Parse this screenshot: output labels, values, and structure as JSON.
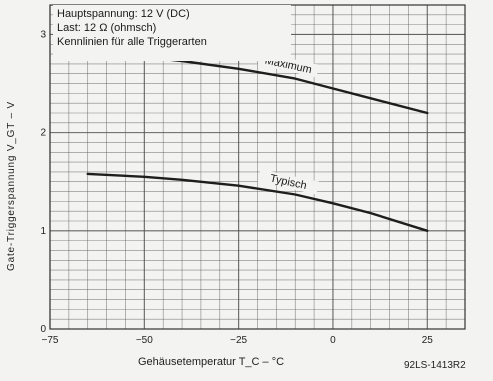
{
  "chart_data": {
    "type": "line",
    "annotation_lines": [
      "Hauptspannung: 12 V (DC)",
      "Last: 12 Ω (ohmsch)",
      "Kennlinien für alle Triggerarten"
    ],
    "xlabel": "Gehäusetemperatur T_C – °C",
    "ylabel": "Gate-Triggerspannung V_GT – V",
    "figure_id": "92LS-1413R2",
    "xlim": [
      -75,
      35
    ],
    "ylim": [
      0,
      3.3
    ],
    "x_ticks": [
      "−75",
      "−50",
      "−25",
      "0",
      "25"
    ],
    "x_tick_values": [
      -75,
      -50,
      -25,
      0,
      25
    ],
    "y_ticks": [
      "0",
      "1",
      "2",
      "3"
    ],
    "y_tick_values": [
      0,
      1,
      2,
      3
    ],
    "grid": true,
    "series": [
      {
        "name": "Maximum",
        "x": [
          -65,
          -50,
          -40,
          -25,
          -10,
          0,
          10,
          25
        ],
        "y": [
          2.8,
          2.77,
          2.73,
          2.65,
          2.55,
          2.45,
          2.35,
          2.2
        ]
      },
      {
        "name": "Typisch",
        "x": [
          -65,
          -50,
          -40,
          -25,
          -10,
          0,
          10,
          25
        ],
        "y": [
          1.58,
          1.55,
          1.52,
          1.46,
          1.37,
          1.28,
          1.18,
          1.0
        ]
      }
    ]
  },
  "colors": {
    "grid": "#555555",
    "line": "#1e1e1e",
    "background": "#f3f3f1"
  }
}
